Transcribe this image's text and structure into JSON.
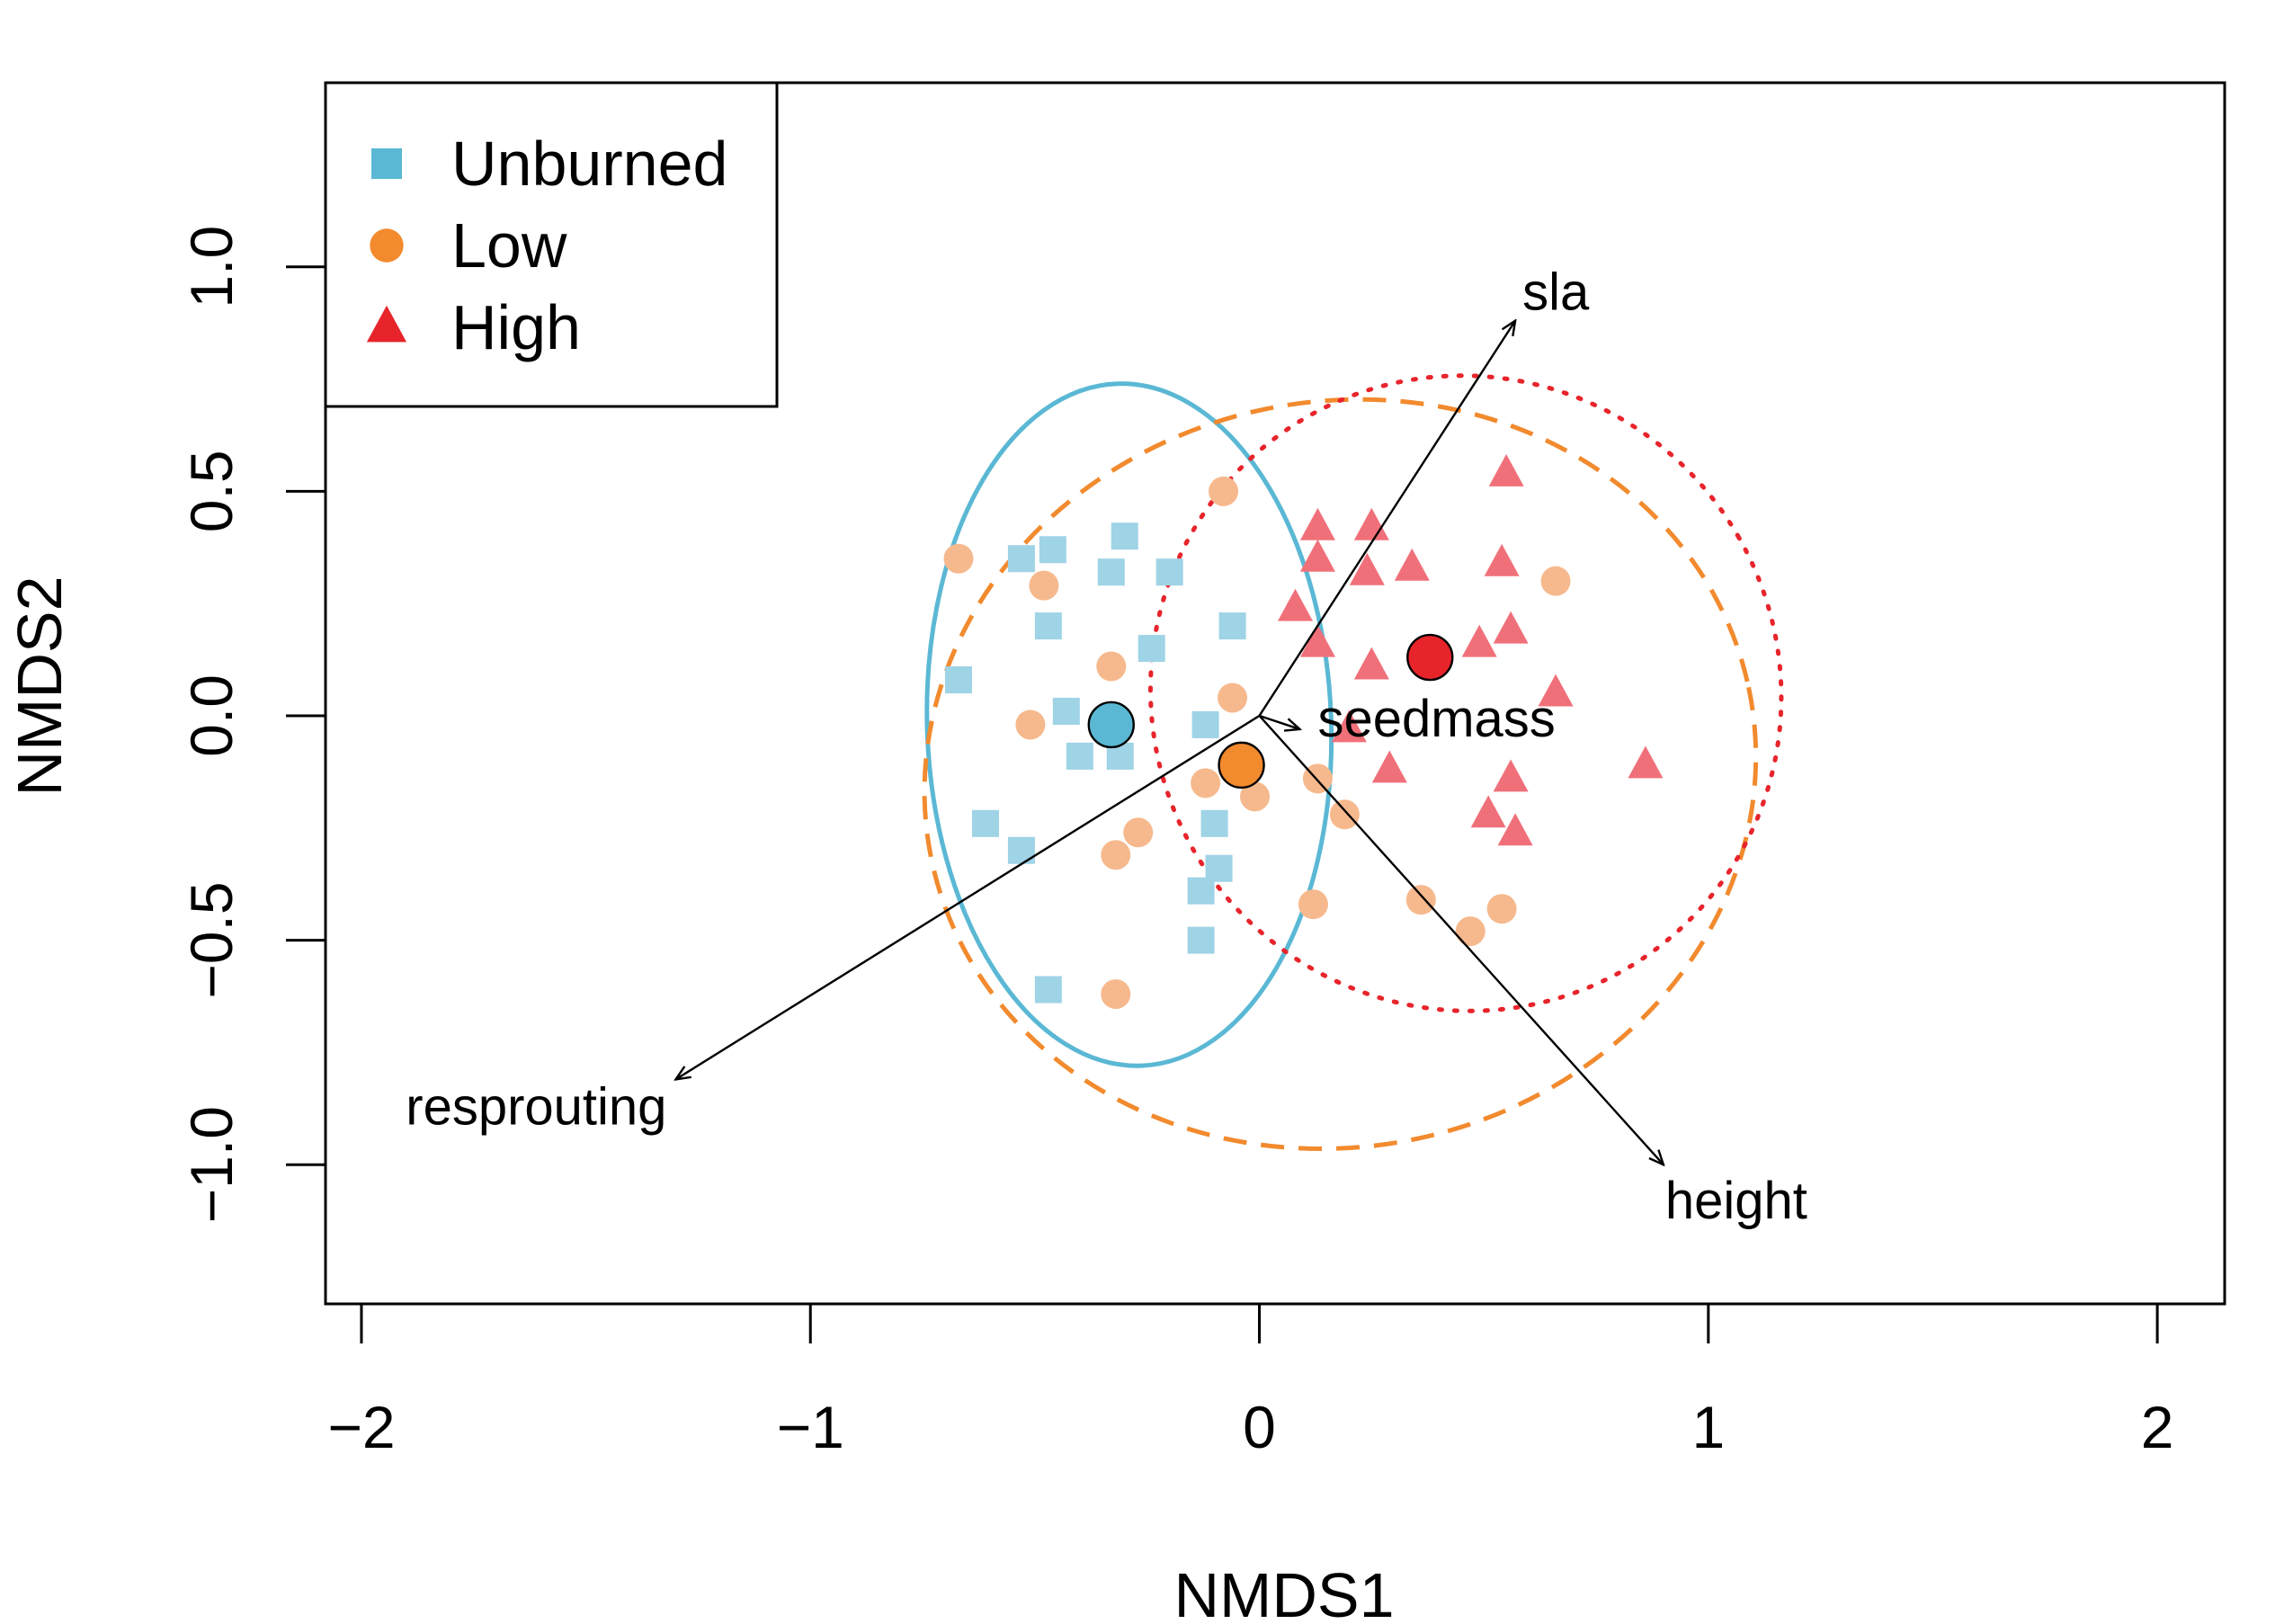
{
  "chart_data": {
    "type": "scatter",
    "title": "",
    "xlabel": "NMDS1",
    "ylabel": "NMDS2",
    "xlim": [
      -2.08,
      2.15
    ],
    "ylim": [
      -1.31,
      1.41
    ],
    "x_ticks": [
      -2,
      -1,
      0,
      1,
      2
    ],
    "y_ticks": [
      -1.0,
      -0.5,
      0.0,
      0.5,
      1.0
    ],
    "x_tick_labels": [
      "−2",
      "−1",
      "0",
      "1",
      "2"
    ],
    "y_tick_labels": [
      "−1.0",
      "−0.5",
      "0.0",
      "0.5",
      "1.0"
    ],
    "grid": false,
    "legend": {
      "position": "top-left",
      "entries": [
        {
          "label": "Unburned",
          "marker": "square",
          "color": "#5BB8D4"
        },
        {
          "label": "Low",
          "marker": "circle",
          "color": "#F28A2E"
        },
        {
          "label": "High",
          "marker": "triangle",
          "color": "#E8242B"
        }
      ]
    },
    "series": [
      {
        "name": "Unburned",
        "marker": "square",
        "color": "#9FD3E6",
        "points": [
          [
            -0.53,
            0.35
          ],
          [
            -0.46,
            0.37
          ],
          [
            -0.33,
            0.32
          ],
          [
            -0.3,
            0.4
          ],
          [
            -0.2,
            0.32
          ],
          [
            -0.47,
            0.2
          ],
          [
            -0.24,
            0.15
          ],
          [
            -0.06,
            0.2
          ],
          [
            -0.67,
            0.08
          ],
          [
            -0.43,
            0.01
          ],
          [
            -0.4,
            -0.09
          ],
          [
            -0.31,
            -0.09
          ],
          [
            -0.12,
            -0.02
          ],
          [
            -0.61,
            -0.24
          ],
          [
            -0.53,
            -0.3
          ],
          [
            -0.1,
            -0.24
          ],
          [
            -0.09,
            -0.34
          ],
          [
            -0.13,
            -0.39
          ],
          [
            -0.13,
            -0.5
          ],
          [
            -0.47,
            -0.61
          ]
        ],
        "centroid": [
          -0.33,
          -0.02
        ],
        "ellipse": {
          "style": "solid",
          "color": "#5BB8D4",
          "center": [
            -0.29,
            -0.02
          ],
          "rx": 0.45,
          "ry": 0.76,
          "rotation_deg": -2
        }
      },
      {
        "name": "Low",
        "marker": "circle",
        "color": "#F6B98D",
        "points": [
          [
            -0.67,
            0.35
          ],
          [
            -0.48,
            0.29
          ],
          [
            -0.08,
            0.5
          ],
          [
            -0.33,
            0.11
          ],
          [
            -0.06,
            0.04
          ],
          [
            -0.51,
            -0.02
          ],
          [
            -0.12,
            -0.15
          ],
          [
            -0.01,
            -0.18
          ],
          [
            0.13,
            -0.14
          ],
          [
            0.19,
            -0.22
          ],
          [
            -0.27,
            -0.26
          ],
          [
            -0.32,
            -0.31
          ],
          [
            0.12,
            -0.42
          ],
          [
            0.36,
            -0.41
          ],
          [
            0.47,
            -0.48
          ],
          [
            0.54,
            -0.43
          ],
          [
            0.66,
            0.3
          ],
          [
            -0.32,
            -0.62
          ]
        ],
        "centroid": [
          -0.04,
          -0.11
        ],
        "ellipse": {
          "style": "dashed",
          "color": "#F28A2E",
          "center": [
            0.18,
            -0.13
          ],
          "rx": 0.93,
          "ry": 0.83,
          "rotation_deg": -12
        }
      },
      {
        "name": "High",
        "marker": "triangle",
        "color": "#F0707A",
        "points": [
          [
            0.13,
            0.42
          ],
          [
            0.25,
            0.42
          ],
          [
            0.55,
            0.54
          ],
          [
            0.13,
            0.35
          ],
          [
            0.34,
            0.33
          ],
          [
            0.24,
            0.32
          ],
          [
            0.54,
            0.34
          ],
          [
            0.08,
            0.24
          ],
          [
            0.13,
            0.16
          ],
          [
            0.56,
            0.19
          ],
          [
            0.49,
            0.16
          ],
          [
            0.25,
            0.11
          ],
          [
            0.66,
            0.05
          ],
          [
            0.2,
            -0.03
          ],
          [
            0.29,
            -0.12
          ],
          [
            0.86,
            -0.11
          ],
          [
            0.56,
            -0.14
          ],
          [
            0.51,
            -0.22
          ],
          [
            0.57,
            -0.26
          ]
        ],
        "centroid": [
          0.38,
          0.13
        ],
        "ellipse": {
          "style": "dotted",
          "color": "#E8242B",
          "center": [
            0.46,
            0.05
          ],
          "rx": 0.7,
          "ry": 0.71,
          "rotation_deg": -30
        }
      }
    ],
    "vectors": [
      {
        "label": "sla",
        "x": 0.57,
        "y": 0.88
      },
      {
        "label": "seedmass",
        "x": 0.09,
        "y": -0.03
      },
      {
        "label": "height",
        "x": 0.9,
        "y": -1.0
      },
      {
        "label": "resprouting",
        "x": -1.3,
        "y": -0.81
      }
    ]
  }
}
